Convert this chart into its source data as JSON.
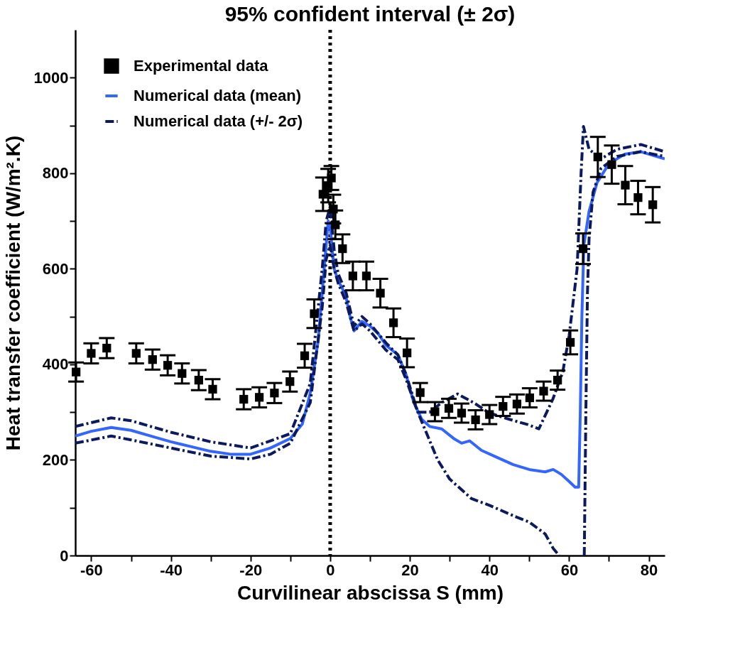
{
  "chart_data": {
    "type": "line",
    "title": "95% confident interval (± 2σ)",
    "xlabel": "Curvilinear abscissa S (mm)",
    "ylabel": "Heat transfer coefficient (W/m².K)",
    "xlim": [
      -64,
      84
    ],
    "ylim": [
      0,
      1100
    ],
    "xticks": [
      -60,
      {
        "value": -50,
        "label": null
      },
      -40,
      {
        "value": -30,
        "label": null
      },
      -20,
      {
        "value": -10,
        "label": null
      },
      0,
      {
        "value": 10,
        "label": null
      },
      20,
      {
        "value": 30,
        "label": null
      },
      40,
      {
        "value": 50,
        "label": null
      },
      60,
      {
        "value": 70,
        "label": null
      },
      80
    ],
    "yticks": [
      0,
      {
        "value": 100,
        "label": null
      },
      200,
      {
        "value": 300,
        "label": null
      },
      400,
      {
        "value": 500,
        "label": null
      },
      600,
      {
        "value": 700,
        "label": null
      },
      800,
      {
        "value": 900,
        "label": null
      },
      1000
    ],
    "legend": "top left",
    "ref_lines": [
      {
        "axis": "x",
        "value": 0,
        "color": "#000000",
        "line_style": "dotted"
      }
    ],
    "series": [
      {
        "name": "Experimental data",
        "type": "scatter",
        "marker": "square",
        "color": "#000000",
        "x": [
          -63.8,
          -60.0,
          -56.1,
          -48.7,
          -44.6,
          -40.8,
          -37.2,
          -33.0,
          -29.5,
          -21.7,
          -17.8,
          -14.0,
          -10.1,
          -6.4,
          -4.0,
          -1.8,
          -0.5,
          0.3,
          0.8,
          1.3,
          3.1,
          5.7,
          9.1,
          12.6,
          15.9,
          19.3,
          22.6,
          26.3,
          29.8,
          33.0,
          36.5,
          40.0,
          43.4,
          46.9,
          50.1,
          53.6,
          57.1,
          60.3,
          63.5,
          67.2,
          70.7,
          74.1,
          77.3,
          81.0
        ],
        "values": [
          384,
          423,
          434,
          423,
          410,
          398,
          381,
          367,
          348,
          327,
          331,
          340,
          364,
          418,
          506,
          756,
          774,
          790,
          725,
          692,
          642,
          585,
          585,
          549,
          487,
          424,
          341,
          301,
          308,
          298,
          284,
          295,
          312,
          317,
          330,
          344,
          367,
          446,
          642,
          834,
          818,
          775,
          749,
          734
        ],
        "errors": [
          20,
          21,
          21,
          21,
          21,
          21,
          21,
          21,
          21,
          21,
          21,
          21,
          21,
          25,
          30,
          35,
          35,
          25,
          30,
          30,
          30,
          30,
          30,
          30,
          30,
          30,
          20,
          20,
          20,
          20,
          20,
          20,
          20,
          20,
          20,
          20,
          20,
          25,
          32,
          42,
          40,
          40,
          35,
          37
        ]
      },
      {
        "name": "Numerical data (mean)",
        "type": "line",
        "line_style": "solid",
        "color": "#3366ff",
        "x": [
          -64,
          -60,
          -55,
          -50,
          -45,
          -40,
          -35,
          -30,
          -25,
          -20,
          -15,
          -10,
          -7,
          -5,
          -3,
          -2,
          -1,
          -0.5,
          0,
          0.5,
          1,
          2,
          3,
          4,
          5,
          6,
          8,
          10,
          12,
          14,
          17,
          19,
          21,
          23,
          25,
          28,
          31,
          33,
          35,
          38,
          42,
          46,
          50,
          54,
          56,
          58,
          60,
          61.5,
          62.4,
          62.8,
          63.2,
          63.7,
          65,
          67,
          70,
          74,
          78,
          82,
          84
        ],
        "values": [
          250,
          260,
          268,
          262,
          250,
          238,
          228,
          218,
          212,
          212,
          225,
          245,
          275,
          340,
          450,
          550,
          650,
          700,
          690,
          640,
          600,
          575,
          560,
          540,
          500,
          470,
          490,
          480,
          465,
          440,
          420,
          380,
          320,
          285,
          270,
          265,
          245,
          235,
          240,
          220,
          205,
          190,
          180,
          175,
          180,
          170,
          155,
          143,
          143,
          300,
          500,
          650,
          720,
          780,
          820,
          840,
          845,
          835,
          830
        ]
      },
      {
        "name": "Numerical data (+/- 2σ)",
        "type": "line",
        "line_style": "dashdot",
        "color": "#0b1a5e",
        "x": [
          -64,
          -55,
          -50,
          -40,
          -30,
          -20,
          -10,
          -5,
          -2,
          -1,
          0,
          1,
          2,
          4,
          6,
          8,
          10,
          14,
          17,
          19,
          22,
          25,
          28,
          32,
          36,
          40,
          45,
          49.6,
          52.4,
          55.9,
          58.4,
          60,
          62,
          63,
          63.6,
          65,
          68,
          72,
          78,
          84
        ],
        "values": [
          270,
          288,
          282,
          258,
          238,
          225,
          255,
          360,
          600,
          700,
          730,
          640,
          590,
          550,
          480,
          500,
          485,
          445,
          420,
          380,
          300,
          300,
          320,
          338,
          320,
          298,
          285,
          274,
          265,
          327,
          384,
          460,
          600,
          800,
          898,
          850,
          830,
          850,
          860,
          845
        ]
      },
      {
        "type": "line",
        "line_style": "dashdot",
        "color": "#0b1a5e",
        "x": [
          -64,
          -55,
          -50,
          -40,
          -30,
          -20,
          -15,
          -10,
          -5,
          -2,
          -1,
          0,
          1,
          2,
          4,
          6,
          8,
          10,
          14,
          17,
          19,
          22,
          24,
          27,
          30,
          35.5,
          40,
          46.9,
          50,
          54,
          56,
          57.5,
          60,
          63.8,
          64.2,
          64.6,
          65,
          66,
          68,
          72,
          78,
          84
        ],
        "values": [
          235,
          250,
          242,
          225,
          208,
          202,
          212,
          235,
          320,
          520,
          620,
          650,
          600,
          570,
          530,
          470,
          485,
          470,
          430,
          410,
          370,
          300,
          260,
          200,
          160,
          119,
          105,
          80,
          70,
          45,
          15,
          0,
          null,
          0,
          300,
          550,
          662,
          760,
          810,
          835,
          845,
          835
        ]
      }
    ]
  }
}
